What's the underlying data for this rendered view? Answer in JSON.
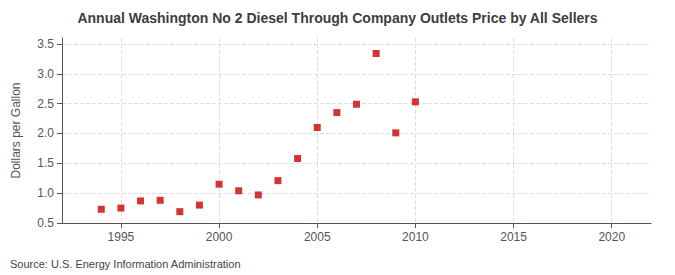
{
  "chart_data": {
    "type": "scatter",
    "title": "Annual Washington No 2 Diesel Through Company Outlets Price by All Sellers",
    "ylabel": "Dollars per Gallon",
    "annotation": "Source: U.S. Energy Information Administration",
    "x": [
      1994,
      1995,
      1996,
      1997,
      1998,
      1999,
      2000,
      2001,
      2002,
      2003,
      2004,
      2005,
      2006,
      2007,
      2008,
      2009,
      2010
    ],
    "values": [
      0.73,
      0.75,
      0.87,
      0.88,
      0.69,
      0.8,
      1.15,
      1.04,
      0.97,
      1.21,
      1.58,
      2.1,
      2.35,
      2.49,
      3.34,
      2.01,
      2.53
    ],
    "color": "#cc0000",
    "marker": "square",
    "xlim": [
      1992,
      2022
    ],
    "ylim": [
      0.5,
      3.6
    ],
    "xticks": [
      1995,
      2000,
      2005,
      2010,
      2015,
      2020
    ],
    "yticks": [
      0.5,
      {
        "value": 1.0,
        "label": "1.0"
      },
      1.5,
      {
        "value": 2.0,
        "label": "2.0"
      },
      2.5,
      {
        "value": 3.0,
        "label": "3.0"
      },
      3.5
    ],
    "grid": true
  }
}
